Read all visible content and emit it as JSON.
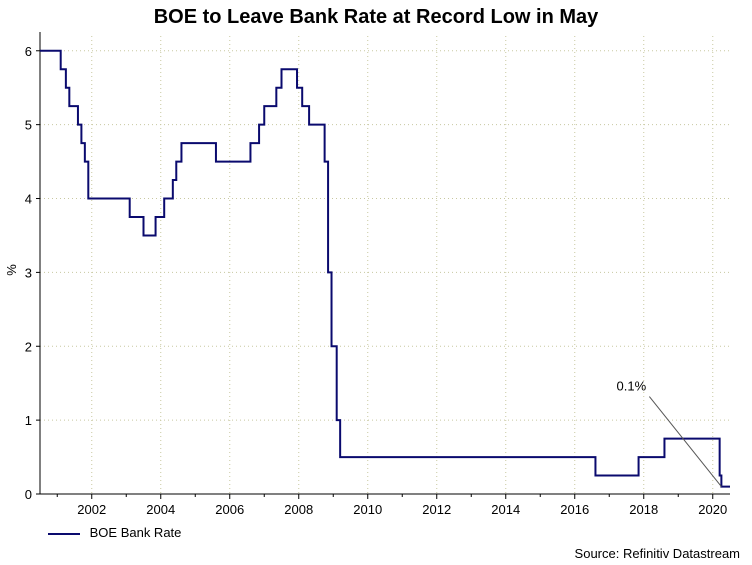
{
  "chart_data": {
    "type": "line",
    "title": "BOE to Leave Bank Rate at Record Low in May",
    "ylabel": "%",
    "xlabel": "",
    "xlim": [
      2000.5,
      2020.5
    ],
    "ylim": [
      0,
      6.2
    ],
    "xticks": [
      2002,
      2004,
      2006,
      2008,
      2010,
      2012,
      2014,
      2016,
      2018,
      2020
    ],
    "yticks": [
      0,
      1,
      2,
      3,
      4,
      5,
      6
    ],
    "grid": "dotted",
    "legend_position": "bottom-left",
    "series": [
      {
        "name": "BOE Bank Rate",
        "color": "#0a0a6e",
        "step": true,
        "points": [
          [
            2000.5,
            6.0
          ],
          [
            2001.1,
            5.75
          ],
          [
            2001.25,
            5.5
          ],
          [
            2001.35,
            5.25
          ],
          [
            2001.6,
            5.0
          ],
          [
            2001.7,
            4.75
          ],
          [
            2001.8,
            4.5
          ],
          [
            2001.9,
            4.0
          ],
          [
            2003.1,
            3.75
          ],
          [
            2003.5,
            3.5
          ],
          [
            2003.85,
            3.75
          ],
          [
            2004.1,
            4.0
          ],
          [
            2004.35,
            4.25
          ],
          [
            2004.45,
            4.5
          ],
          [
            2004.6,
            4.75
          ],
          [
            2005.6,
            4.5
          ],
          [
            2006.6,
            4.75
          ],
          [
            2006.85,
            5.0
          ],
          [
            2007.0,
            5.25
          ],
          [
            2007.35,
            5.5
          ],
          [
            2007.5,
            5.75
          ],
          [
            2007.95,
            5.5
          ],
          [
            2008.1,
            5.25
          ],
          [
            2008.3,
            5.0
          ],
          [
            2008.75,
            4.5
          ],
          [
            2008.85,
            3.0
          ],
          [
            2008.95,
            2.0
          ],
          [
            2009.1,
            1.0
          ],
          [
            2009.2,
            0.5
          ],
          [
            2016.6,
            0.25
          ],
          [
            2017.85,
            0.5
          ],
          [
            2018.6,
            0.75
          ],
          [
            2020.2,
            0.25
          ],
          [
            2020.25,
            0.1
          ],
          [
            2020.5,
            0.1
          ]
        ]
      }
    ],
    "annotations": [
      {
        "text": "0.1%",
        "x": 2020.25,
        "y": 0.1
      }
    ],
    "source": "Source: Refinitiv Datastream"
  }
}
